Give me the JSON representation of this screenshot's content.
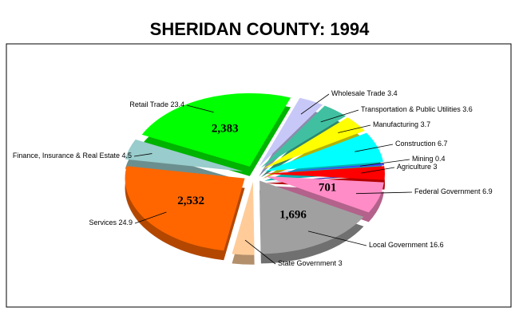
{
  "chart_data": {
    "type": "pie",
    "title": "SHERIDAN COUNTY:  1994",
    "categories": [
      "Wholesale Trade",
      "Transportation & Public Utilities",
      "Manufacturing",
      "Construction",
      "Mining",
      "Agriculture",
      "Federal Government",
      "Local Government",
      "State Government",
      "Services",
      "Finance, Insurance & Real Estate",
      "Retail Trade"
    ],
    "values": [
      3.4,
      3.6,
      3.7,
      6.7,
      0.4,
      3.0,
      6.9,
      16.6,
      3.0,
      24.9,
      4.5,
      23.4
    ],
    "colors": [
      "#c8c8f8",
      "#40c0a0",
      "#ffff00",
      "#00ffff",
      "#4040ff",
      "#ff0000",
      "#ff8cc6",
      "#a0a0a0",
      "#ffcc99",
      "#ff6600",
      "#99cccc",
      "#00ff00"
    ],
    "counts": [
      null,
      null,
      null,
      null,
      null,
      null,
      701,
      1696,
      null,
      2532,
      null,
      2383
    ],
    "count_labels": [
      null,
      null,
      null,
      null,
      null,
      null,
      "701",
      "1,696",
      null,
      "2,532",
      null,
      "2,383"
    ]
  }
}
